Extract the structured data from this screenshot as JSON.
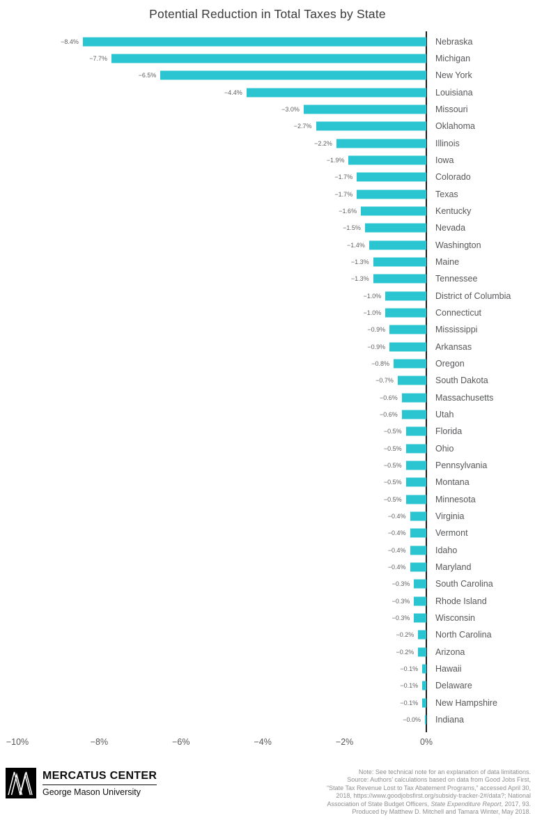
{
  "chart_data": {
    "type": "bar",
    "orientation": "horizontal",
    "title": "Potential Reduction in Total Taxes by State",
    "bar_color": "#2bc4d1",
    "xlim": [
      -10,
      0
    ],
    "x_tick_labels": [
      "−10%",
      "−8%",
      "−6%",
      "−4%",
      "−2%",
      "0%"
    ],
    "categories": [
      "Nebraska",
      "Michigan",
      "New York",
      "Louisiana",
      "Missouri",
      "Oklahoma",
      "Illinois",
      "Iowa",
      "Colorado",
      "Texas",
      "Kentucky",
      "Nevada",
      "Washington",
      "Maine",
      "Tennessee",
      "District of Columbia",
      "Connecticut",
      "Mississippi",
      "Arkansas",
      "Oregon",
      "South Dakota",
      "Massachusetts",
      "Utah",
      "Florida",
      "Ohio",
      "Pennsylvania",
      "Montana",
      "Minnesota",
      "Virginia",
      "Vermont",
      "Idaho",
      "Maryland",
      "South Carolina",
      "Rhode Island",
      "Wisconsin",
      "North Carolina",
      "Arizona",
      "Hawaii",
      "Delaware",
      "New Hampshire",
      "Indiana"
    ],
    "values": [
      -8.4,
      -7.7,
      -6.5,
      -4.4,
      -3.0,
      -2.7,
      -2.2,
      -1.9,
      -1.7,
      -1.7,
      -1.6,
      -1.5,
      -1.4,
      -1.3,
      -1.3,
      -1.0,
      -1.0,
      -0.9,
      -0.9,
      -0.8,
      -0.7,
      -0.6,
      -0.6,
      -0.5,
      -0.5,
      -0.5,
      -0.5,
      -0.5,
      -0.4,
      -0.4,
      -0.4,
      -0.4,
      -0.3,
      -0.3,
      -0.3,
      -0.2,
      -0.2,
      -0.1,
      -0.1,
      -0.1,
      0.0
    ],
    "value_labels": [
      "−8.4%",
      "−7.7%",
      "−6.5%",
      "−4.4%",
      "−3.0%",
      "−2.7%",
      "−2.2%",
      "−1.9%",
      "−1.7%",
      "−1.7%",
      "−1.6%",
      "−1.5%",
      "−1.4%",
      "−1.3%",
      "−1.3%",
      "−1.0%",
      "−1.0%",
      "−0.9%",
      "−0.9%",
      "−0.8%",
      "−0.7%",
      "−0.6%",
      "−0.6%",
      "−0.5%",
      "−0.5%",
      "−0.5%",
      "−0.5%",
      "−0.5%",
      "−0.4%",
      "−0.4%",
      "−0.4%",
      "−0.4%",
      "−0.3%",
      "−0.3%",
      "−0.3%",
      "−0.2%",
      "−0.2%",
      "−0.1%",
      "−0.1%",
      "−0.1%",
      "−0.0%"
    ]
  },
  "footer": {
    "brand_name": "MERCATUS CENTER",
    "brand_subtitle": "George Mason University",
    "note": {
      "line1": "Note: See technical note for an explanation of data limitations.",
      "line2": "Source: Authors’ calculations based on data from Good Jobs First,",
      "line3": "“State Tax Revenue Lost to Tax Abatement Programs,” accessed April 30,",
      "line4": "2018, https://www.goodjobsfirst.org/subsidy-tracker-2#/data?; National",
      "line5_prefix": "Association of State Budget Officers, ",
      "line5_italic": "State Expenditure Report",
      "line5_suffix": ", 2017, 93.",
      "line6": "Produced by Matthew D. Mitchell and Tamara Winter, May 2018."
    }
  }
}
